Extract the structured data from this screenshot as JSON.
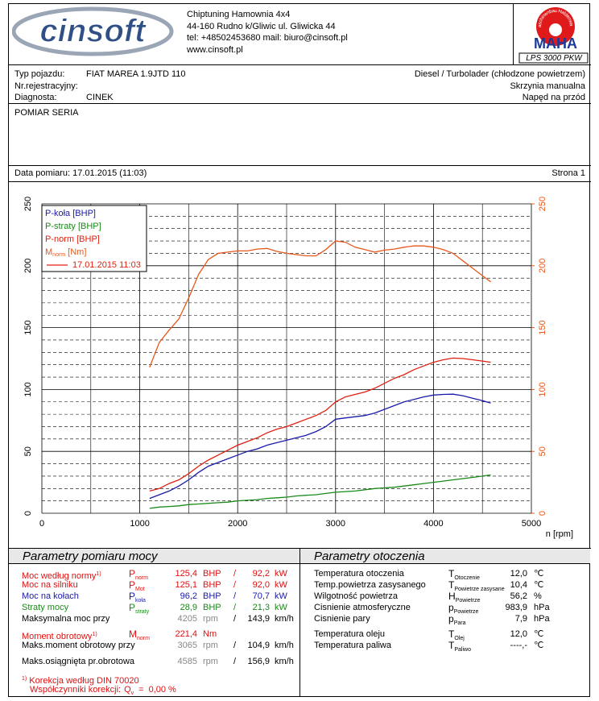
{
  "header": {
    "logo": "cinsoft",
    "address": [
      "Chiptuning Hamownia 4x4",
      "44-160 Rudno k/Gliwic ul. Gliwicka 44",
      "tel: +48502453680 mail: biuro@cinsoft.pl",
      "www.cinsoft.pl"
    ],
    "maha_arc": "Maschinenbau Haldenwang",
    "maha": "MAHA",
    "model": "LPS 3000 PKW"
  },
  "vehicle": {
    "rows": [
      {
        "label": "Typ pojazdu:",
        "value": "FIAT MAREA 1.9JTD 110",
        "right": "Diesel / Turbolader (chłodzone powietrzem)"
      },
      {
        "label": "Nr.rejestracyjny:",
        "right": "Skrzynia manualna"
      },
      {
        "label": "Diagnosta:",
        "value": "CINEK",
        "right": "Napęd na przód"
      }
    ]
  },
  "test_type": "POMIAR SERIA",
  "date": "Data pomiaru: 17.01.2015 (11:03)",
  "page": "Strona 1",
  "chart_data": {
    "type": "line",
    "xlabel": "n [rpm]",
    "x": [
      1100,
      1200,
      1300,
      1400,
      1500,
      1600,
      1700,
      1800,
      1900,
      2000,
      2100,
      2200,
      2300,
      2400,
      2500,
      2600,
      2700,
      2800,
      2900,
      3000,
      3100,
      3200,
      3300,
      3400,
      3500,
      3600,
      3700,
      3800,
      3900,
      4000,
      4100,
      4200,
      4300,
      4400,
      4500,
      4585
    ],
    "series": [
      {
        "name": "P-koła [BHP]",
        "color": "#1a1aa8",
        "values": [
          12,
          15,
          18,
          22,
          27,
          33,
          38,
          41,
          44,
          47,
          50,
          52,
          55,
          57,
          59,
          61,
          63,
          66,
          70,
          76,
          77,
          78,
          79,
          81,
          84,
          87,
          90,
          92,
          94,
          95.5,
          96,
          96.2,
          95,
          93,
          91,
          89
        ]
      },
      {
        "name": "P-straty [BHP]",
        "color": "#1a8a1a",
        "values": [
          4,
          5,
          5.5,
          6,
          7,
          7.5,
          8,
          8.5,
          9,
          10,
          10.5,
          11,
          12,
          12.5,
          13,
          14,
          14.5,
          15,
          16,
          17,
          17.5,
          18,
          19,
          20,
          20.5,
          21,
          22,
          23,
          24,
          25,
          26,
          27,
          28,
          29,
          30,
          31
        ]
      },
      {
        "name": "P-norm [BHP]",
        "color": "#e02010",
        "values": [
          18,
          20,
          24,
          27,
          32,
          38,
          43,
          47,
          51,
          55,
          58,
          61,
          65,
          68,
          70,
          73,
          76,
          79,
          83,
          90,
          94,
          96,
          98,
          101,
          105,
          109,
          112,
          116,
          119,
          122,
          124,
          125.4,
          125,
          124,
          123,
          122
        ]
      },
      {
        "name": "M",
        "name_sub": "norm",
        "name_unit": " [Nm]",
        "color": "#e8581a",
        "axis": "y2",
        "values": [
          118,
          138,
          148,
          157,
          174,
          193,
          205,
          210,
          211,
          212,
          212,
          213.5,
          214,
          211.6,
          210,
          209,
          208,
          208,
          213,
          220,
          219,
          215,
          213,
          211,
          212.6,
          213.5,
          215,
          216,
          216,
          215,
          213,
          210,
          204,
          198,
          192,
          187
        ]
      }
    ],
    "legend_line_label": "17.01.2015 11:03",
    "legend_line_color": "#e02010",
    "xlim": [
      0,
      5000
    ],
    "xticks": [
      0,
      1000,
      2000,
      3000,
      4000,
      5000
    ],
    "xgrid": [
      500,
      1500,
      2500,
      3500,
      4500
    ],
    "ylim": [
      0,
      250
    ],
    "yticks": [
      0,
      50,
      100,
      150,
      200,
      250
    ],
    "ygrid": [
      10,
      20,
      30,
      40,
      60,
      70,
      80,
      90,
      110,
      120,
      130,
      140,
      160,
      170,
      180,
      190,
      210,
      220,
      230,
      240
    ],
    "y2lim": [
      0,
      250
    ],
    "y2ticks": [
      0,
      50,
      100,
      150,
      200,
      250
    ],
    "y2color": "#e8581a",
    "legend": "upper left"
  },
  "power_params": {
    "title": "Parametry pomiaru mocy",
    "rows": [
      {
        "label": "Moc według normy",
        "note": "1)",
        "symbol": "P",
        "sub": "norm",
        "value": "125,4",
        "unit": "BHP",
        "sep": "/",
        "value2": "92,2",
        "unit2": "kW",
        "color": "#e01010"
      },
      {
        "label": "Moc na silniku",
        "symbol": "P",
        "sub": "Mot",
        "value": "125,1",
        "unit": "BHP",
        "sep": "/",
        "value2": "92,0",
        "unit2": "kW",
        "color": "#e01010"
      },
      {
        "label": "Moc na kołach",
        "symbol": "P",
        "sub": "koła",
        "value": "96,2",
        "unit": "BHP",
        "sep": "/",
        "value2": "70,7",
        "unit2": "kW",
        "color": "#1a1aa8"
      },
      {
        "label": "Straty mocy",
        "symbol": "P",
        "sub": "straty",
        "value": "28,9",
        "unit": "BHP",
        "sep": "/",
        "value2": "21,3",
        "unit2": "kW",
        "color": "#1a8a1a"
      },
      {
        "label": "Maksymalna moc przy",
        "value": "4205",
        "unit": "rpm",
        "sep": "/",
        "value2": "143,9",
        "unit2": "km/h",
        "color": "#000",
        "value_color": "#888"
      },
      {
        "label": "Moment obrotowy",
        "note": "1)",
        "symbol": "M",
        "sub": "norm",
        "value": "221,4",
        "unit": "Nm",
        "color": "#e01010"
      },
      {
        "label": "Maks.moment obrotowy przy",
        "value": "3065",
        "unit": "rpm",
        "sep": "/",
        "value2": "104,9",
        "unit2": "km/h",
        "color": "#000",
        "value_color": "#888"
      },
      {
        "label": "Maks.osiągnięta pr.obrotowa",
        "value": "4585",
        "unit": "rpm",
        "sep": "/",
        "value2": "156,9",
        "unit2": "km/h",
        "color": "#000",
        "value_color": "#888"
      }
    ]
  },
  "env_params": {
    "title": "Parametry otoczenia",
    "rows": [
      {
        "label": "Temperatura otoczenia",
        "symbol": "T",
        "sub": "Otoczenie",
        "value": "12,0",
        "unit": "℃"
      },
      {
        "label": "Temp.powietrza zasysanego",
        "symbol": "T",
        "sub": "Powietrze zasysane",
        "value": "10,4",
        "unit": "℃"
      },
      {
        "label": "Wilgotność powietrza",
        "symbol": "H",
        "sub": "Powietrze",
        "value": "56,2",
        "unit": "%"
      },
      {
        "label": "Cisnienie atmosferyczne",
        "symbol": "p",
        "sub": "Powietrze",
        "value": "983,9",
        "unit": "hPa"
      },
      {
        "label": "Cisnienie pary",
        "symbol": "p",
        "sub": "Para",
        "value": "7,9",
        "unit": "hPa"
      },
      {
        "label": "Temperatura oleju",
        "symbol": "T",
        "sub": "Olej",
        "value": "12,0",
        "unit": "℃"
      },
      {
        "label": "Temperatura paliwa",
        "symbol": "T",
        "sub": "Paliwo",
        "value": "----,-",
        "unit": "℃"
      }
    ]
  },
  "footnotes": {
    "note": "1)",
    "text": "Korekcja według DIN 70020",
    "label": "Współczynniki korekcji:",
    "symbol": "Q",
    "sub": "v",
    "eq": "=",
    "value": "0,00 %"
  }
}
